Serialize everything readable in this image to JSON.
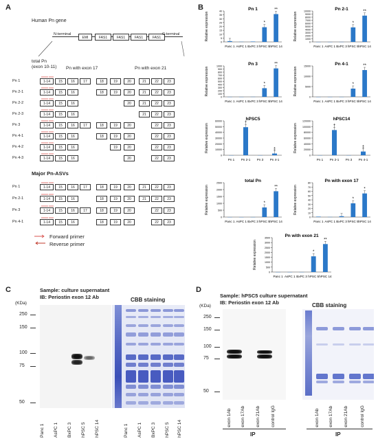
{
  "panelA": {
    "label": "A",
    "gene_title": "Human Pn gene",
    "domains": [
      "N-terminal",
      "EMI",
      "FAS1",
      "FAS1",
      "FAS1",
      "FAS1",
      "C-terminal"
    ],
    "group_labels": [
      "total Pn\n(exon 10-11)",
      "Pn with exon 17",
      "Pn with exon 21"
    ],
    "total_label_line1": "total Pn",
    "total_label_line2": "(exon 10-11)",
    "exon17_label": "Pn with exon 17",
    "exon21_label": "Pn with exon 21",
    "rows": [
      {
        "name": "Pn 1",
        "exons": [
          "1-14",
          "15",
          "16",
          "17",
          "18",
          "19",
          "20",
          "21",
          "22",
          "23"
        ]
      },
      {
        "name": "Pn 2-1",
        "exons": [
          "1-14",
          "15",
          "16",
          "",
          "18",
          "19",
          "20",
          "21",
          "22",
          "23"
        ]
      },
      {
        "name": "Pn 2-2",
        "exons": [
          "1-14",
          "15",
          "16",
          "",
          "",
          "",
          "20",
          "21",
          "22",
          "23"
        ]
      },
      {
        "name": "Pn 2-3",
        "exons": [
          "1-14",
          "15",
          "16",
          "",
          "",
          "",
          "",
          "21",
          "22",
          "23"
        ]
      },
      {
        "name": "Pn 3",
        "exons": [
          "1-14",
          "15",
          "16",
          "17",
          "18",
          "19",
          "20",
          "",
          "22",
          "23"
        ]
      },
      {
        "name": "Pn 4-1",
        "exons": [
          "1-14",
          "15",
          "16",
          "",
          "18",
          "19",
          "20",
          "",
          "22",
          "23"
        ]
      },
      {
        "name": "Pn 4-2",
        "exons": [
          "1-14",
          "15",
          "16",
          "",
          "",
          "19",
          "20",
          "",
          "22",
          "23"
        ]
      },
      {
        "name": "Pn 4-3",
        "exons": [
          "1-14",
          "15",
          "16",
          "",
          "",
          "",
          "20",
          "",
          "22",
          "23"
        ]
      }
    ],
    "major_title": "Major Pn-ASVs",
    "major_rows": [
      {
        "name": "Pn 1",
        "exons": [
          "1-14",
          "15",
          "16",
          "17",
          "18",
          "19",
          "20",
          "21",
          "22",
          "23"
        ]
      },
      {
        "name": "Pn 2-1",
        "exons": [
          "1-14",
          "15",
          "16",
          "",
          "18",
          "19",
          "20",
          "21",
          "22",
          "23"
        ]
      },
      {
        "name": "Pn 3",
        "exons": [
          "1-14",
          "15",
          "16",
          "17",
          "18",
          "19",
          "20",
          "",
          "22",
          "23"
        ]
      },
      {
        "name": "Pn 4-1",
        "exons": [
          "1-14",
          "15",
          "16",
          "",
          "18",
          "19",
          "20",
          "",
          "22",
          "23"
        ]
      }
    ],
    "legend_forward": "Forward primer",
    "legend_reverse": "Reverse primer"
  },
  "panelB": {
    "label": "B"
  },
  "chart_data": [
    {
      "type": "bar",
      "title": "Pn 1",
      "ylabel": "Relative expression",
      "categories": [
        "Panc 1",
        "AsPC 1",
        "BxPC 3",
        "hPSC 5",
        "hPSC 14"
      ],
      "values": [
        1,
        0.2,
        0.5,
        19,
        36
      ],
      "ylim": [
        0,
        40
      ],
      "ticks": [
        0,
        5,
        10,
        15,
        20,
        25,
        30,
        35,
        40
      ],
      "sig": [
        "",
        "",
        "",
        "*",
        "**"
      ]
    },
    {
      "type": "bar",
      "title": "Pn 2-1",
      "ylabel": "Relative expression",
      "categories": [
        "Panc 1",
        "AsPC 1",
        "BxPC 3",
        "hPSC 5",
        "hPSC 14"
      ],
      "values": [
        1,
        5,
        20,
        4700,
        8500
      ],
      "ylim": [
        0,
        10000
      ],
      "ticks": [
        0,
        1000,
        2000,
        3000,
        4000,
        5000,
        6000,
        7000,
        8000,
        9000,
        10000
      ],
      "sig": [
        "",
        "",
        "",
        "*",
        "**"
      ]
    },
    {
      "type": "bar",
      "title": "Pn 3",
      "ylabel": "Relative expression",
      "categories": [
        "Panc 1",
        "AsPC 1",
        "BxPC 3",
        "hPSC 5",
        "hPSC 14"
      ],
      "values": [
        1,
        0.5,
        3,
        280,
        920
      ],
      "ylim": [
        0,
        1000
      ],
      "ticks": [
        0,
        100,
        200,
        300,
        400,
        500,
        600,
        700,
        800,
        900,
        1000
      ],
      "sig": [
        "",
        "",
        "",
        "*",
        "**"
      ]
    },
    {
      "type": "bar",
      "title": "Pn 4-1",
      "ylabel": "Relative expression",
      "categories": [
        "Panc 1",
        "AsPC 1",
        "BxPC 3",
        "hPSC 5",
        "hPSC 14"
      ],
      "values": [
        1,
        5,
        10,
        4000,
        13000
      ],
      "ylim": [
        0,
        15000
      ],
      "ticks": [
        0,
        5000,
        10000,
        15000
      ],
      "sig": [
        "",
        "",
        "",
        "*",
        "**"
      ]
    },
    {
      "type": "bar",
      "title": "hPSC5",
      "ylabel": "Relative expression",
      "categories": [
        "Pn 1",
        "Pn 2-1",
        "Pn 3",
        "Pn 4-1"
      ],
      "values": [
        1,
        49000,
        15,
        3000
      ],
      "ylim": [
        0,
        60000
      ],
      "ticks": [
        0,
        10000,
        20000,
        30000,
        40000,
        50000,
        60000
      ],
      "sig": [
        "",
        "†",
        "",
        "‡"
      ]
    },
    {
      "type": "bar",
      "title": "hPSC14",
      "ylabel": "Relative expression",
      "categories": [
        "Pn 1",
        "Pn 2-1",
        "Pn 3",
        "Pn 4-1"
      ],
      "values": [
        1,
        88000,
        30,
        13000
      ],
      "ylim": [
        0,
        120000
      ],
      "ticks": [
        0,
        20000,
        40000,
        60000,
        80000,
        100000,
        120000
      ],
      "sig": [
        "",
        "†",
        "",
        "‡"
      ]
    },
    {
      "type": "bar",
      "title": "total Pn",
      "ylabel": "Relative expression",
      "categories": [
        "Panc 1",
        "AsPC 1",
        "BxPC 3",
        "hPSC 5",
        "hPSC 14"
      ],
      "values": [
        1,
        0.5,
        3,
        700,
        1880
      ],
      "ylim": [
        0,
        2500
      ],
      "ticks": [
        0,
        500,
        1000,
        1500,
        2000,
        2500
      ],
      "sig": [
        "",
        "",
        "",
        "*",
        "**"
      ]
    },
    {
      "type": "bar",
      "title": "Pn with exon 17",
      "ylabel": "Relative expression",
      "categories": [
        "Panc 1",
        "AsPC 1",
        "BxPC 3",
        "hPSC 5",
        "hPSC 14"
      ],
      "values": [
        1,
        0.3,
        2,
        32,
        55
      ],
      "ylim": [
        0,
        80
      ],
      "ticks": [
        0,
        10,
        20,
        30,
        40,
        50,
        60,
        70,
        80
      ],
      "sig": [
        "",
        "",
        "",
        "*",
        "*"
      ]
    },
    {
      "type": "bar",
      "title": "Pn with exon 21",
      "ylabel": "Relative expression",
      "categories": [
        "Panc 1",
        "AsPC 1",
        "BxPC 3",
        "hPSC 5",
        "hPSC 14"
      ],
      "values": [
        1,
        0.5,
        3,
        1600,
        2850
      ],
      "ylim": [
        0,
        3500
      ],
      "ticks": [
        0,
        500,
        1000,
        1500,
        2000,
        2500,
        3000,
        3500
      ],
      "sig": [
        "",
        "",
        "",
        "*",
        "**"
      ]
    }
  ],
  "panelC": {
    "label": "C",
    "sample": "Sample: culture supernatant",
    "ib": "IB: Periostin exon 12 Ab",
    "cbb": "CBB staining",
    "kda": "(KDa)",
    "markers": [
      "250",
      "150",
      "100",
      "75",
      "50"
    ],
    "lanes": [
      "Panc 1",
      "AsPC 1",
      "BxPC 3",
      "hPSC 5",
      "hPSC 14"
    ],
    "cbb_lanes": [
      "Panc 1",
      "AsPC 1",
      "BxPC 3",
      "hPSC 5",
      "hPSC 14"
    ]
  },
  "panelD": {
    "label": "D",
    "sample": "Sample: hPSC5 culture supernatant",
    "ib": "IB: Periostin exon 12 Ab",
    "cbb": "CBB staining",
    "kda": "(KDa)",
    "markers": [
      "250",
      "150",
      "100",
      "75",
      "50"
    ],
    "lanes": [
      "exon 1Ab",
      "exon 17Ab",
      "exon 21Ab",
      "control IgG"
    ],
    "cbb_lanes": [
      "exon 1Ab",
      "exon 17Ab",
      "exon 21Ab",
      "control IgG"
    ],
    "ip": "IP",
    "ip2": "IP"
  },
  "colors": {
    "bar": "#2b78c8",
    "forward": "#d9534f",
    "reverse": "#c0392b",
    "cbb": "#4a5fc4"
  }
}
